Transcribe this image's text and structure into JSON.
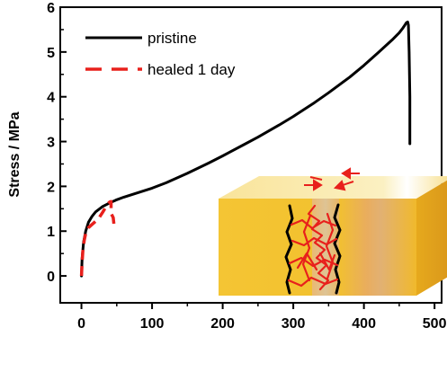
{
  "chart_data": {
    "type": "line",
    "ylabel": "Stress / MPa",
    "xlabel": "",
    "xlim": [
      -30,
      510
    ],
    "ylim": [
      -0.6,
      6
    ],
    "xticks": [
      0,
      100,
      200,
      300,
      400,
      500
    ],
    "yticks": [
      0,
      1,
      2,
      3,
      4,
      5,
      6
    ],
    "legend_position": "top-left",
    "series": [
      {
        "name": "pristine",
        "color": "#000000",
        "style": "solid",
        "x": [
          0,
          1,
          3,
          6,
          10,
          15,
          20,
          30,
          40,
          50,
          60,
          80,
          100,
          120,
          150,
          180,
          200,
          230,
          250,
          280,
          300,
          330,
          350,
          380,
          400,
          420,
          440,
          450,
          455,
          458,
          460,
          462,
          463,
          464,
          465,
          465
        ],
        "y": [
          0,
          0.4,
          0.75,
          1.0,
          1.2,
          1.33,
          1.43,
          1.55,
          1.63,
          1.7,
          1.76,
          1.86,
          1.96,
          2.08,
          2.29,
          2.52,
          2.68,
          2.93,
          3.1,
          3.37,
          3.56,
          3.87,
          4.09,
          4.44,
          4.7,
          4.98,
          5.27,
          5.43,
          5.53,
          5.6,
          5.65,
          5.67,
          5.6,
          5.0,
          4.0,
          2.95
        ]
      },
      {
        "name": "healed 1 day",
        "color": "#e8201c",
        "style": "dashed",
        "x": [
          0,
          1,
          2,
          4,
          6,
          10,
          15,
          20,
          25,
          30,
          35,
          38,
          40,
          42,
          42,
          45,
          46,
          47
        ],
        "y": [
          0,
          0.3,
          0.55,
          0.8,
          0.95,
          1.08,
          1.15,
          1.22,
          1.3,
          1.42,
          1.55,
          1.62,
          1.65,
          1.66,
          1.4,
          1.3,
          1.15,
          1.05
        ]
      }
    ]
  },
  "inset": {
    "colors": {
      "block_front": "#f2c12e",
      "block_side": "#e3a21a",
      "block_top": "#f8df8c",
      "chains": "#000000",
      "healing_chains": "#e8201c",
      "arrows": "#e8201c"
    }
  }
}
